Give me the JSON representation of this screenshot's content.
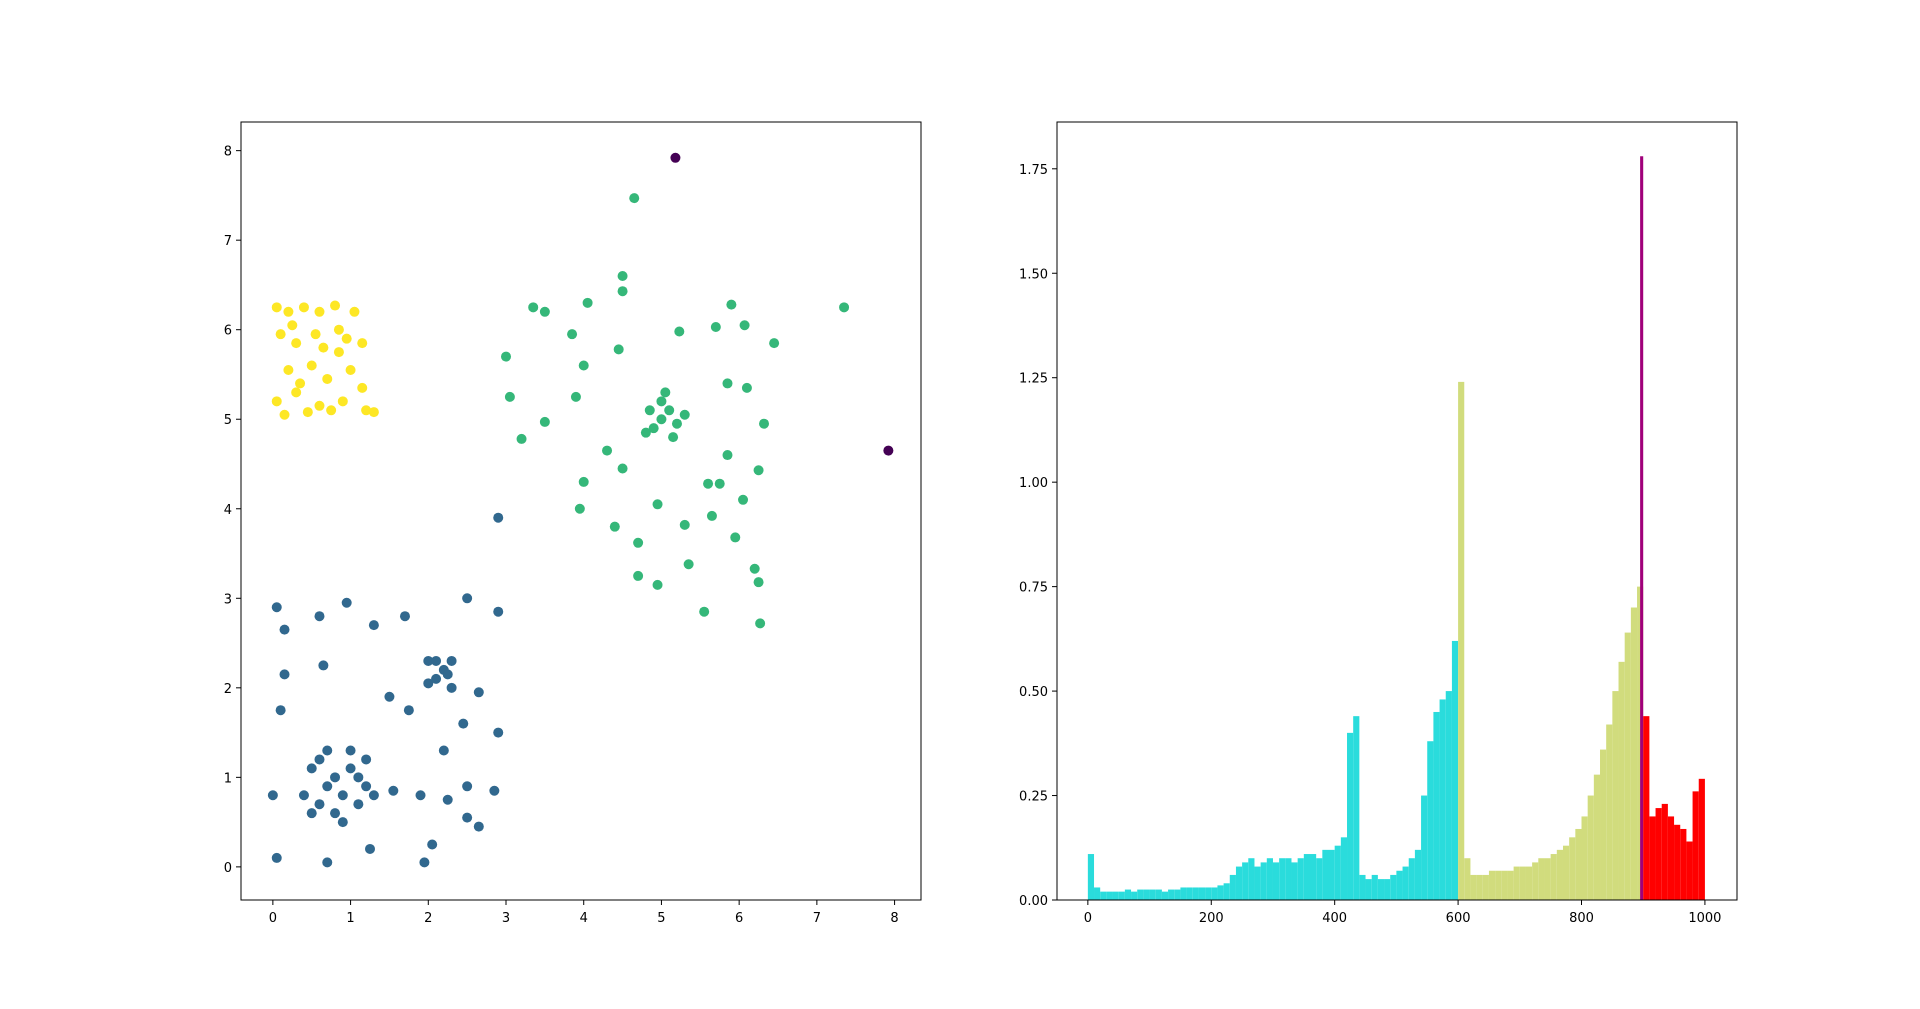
{
  "chart_data": [
    {
      "type": "scatter",
      "xlim": [
        -0.41,
        8.34
      ],
      "ylim": [
        -0.37,
        8.32
      ],
      "xticks": [
        0,
        1,
        2,
        3,
        4,
        5,
        6,
        7,
        8
      ],
      "yticks": [
        0,
        1,
        2,
        3,
        4,
        5,
        6,
        7,
        8
      ],
      "series": [
        {
          "color": "#31688e",
          "x": [
            0.6,
            0.7,
            0.8,
            0.9,
            1.0,
            1.1,
            0.5,
            0.6,
            0.7,
            1.2,
            1.2,
            0.4,
            0.9,
            1.0,
            0.8,
            1.1,
            0.5,
            1.3,
            2.0,
            2.1,
            2.2,
            2.3,
            2.1,
            2.3,
            2.0,
            2.25,
            0.05,
            0.15,
            0.6,
            0.95,
            1.3,
            1.7,
            2.5,
            2.9,
            0.15,
            0.1,
            0.65,
            1.5,
            1.75,
            2.65,
            2.9,
            2.45,
            1.55,
            1.9,
            2.2,
            2.5,
            2.85,
            0.0,
            0.05,
            0.7,
            1.25,
            1.95,
            2.05,
            2.65,
            2.5,
            2.9,
            2.25
          ],
          "y": [
            1.2,
            0.9,
            1.0,
            0.8,
            1.1,
            0.7,
            0.6,
            0.7,
            1.3,
            1.2,
            0.9,
            0.8,
            0.5,
            1.3,
            0.6,
            1.0,
            1.1,
            0.8,
            2.3,
            2.1,
            2.2,
            2.0,
            2.3,
            2.3,
            2.05,
            2.15,
            2.9,
            2.65,
            2.8,
            2.95,
            2.7,
            2.8,
            3.0,
            2.85,
            2.15,
            1.75,
            2.25,
            1.9,
            1.75,
            1.95,
            1.5,
            1.6,
            0.85,
            0.8,
            1.3,
            0.9,
            0.85,
            0.8,
            0.1,
            0.05,
            0.2,
            0.05,
            0.25,
            0.45,
            0.55,
            3.9,
            0.75
          ]
        },
        {
          "color": "#35b779",
          "x": [
            5.0,
            5.1,
            4.9,
            5.2,
            5.0,
            4.85,
            5.15,
            5.3,
            4.8,
            5.05,
            4.65,
            4.5,
            4.5,
            4.05,
            3.35,
            3.5,
            5.9,
            6.07,
            5.7,
            5.23,
            3.0,
            3.85,
            4.0,
            4.45,
            6.45,
            7.35,
            3.05,
            3.2,
            3.5,
            3.9,
            4.3,
            4.0,
            3.95,
            4.4,
            4.7,
            4.7,
            4.95,
            5.55,
            6.27,
            6.25,
            6.2,
            5.95,
            5.35,
            5.3,
            6.05,
            5.6,
            6.25,
            6.32,
            6.1,
            5.85,
            5.85,
            4.95,
            4.5,
            5.75,
            5.65
          ],
          "y": [
            5.0,
            5.1,
            4.9,
            4.95,
            5.2,
            5.1,
            4.8,
            5.05,
            4.85,
            5.3,
            7.47,
            6.6,
            6.43,
            6.3,
            6.25,
            6.2,
            6.28,
            6.05,
            6.03,
            5.98,
            5.7,
            5.95,
            5.6,
            5.78,
            5.85,
            6.25,
            5.25,
            4.78,
            4.97,
            5.25,
            4.65,
            4.3,
            4.0,
            3.8,
            3.62,
            3.25,
            3.15,
            2.85,
            2.72,
            3.18,
            3.33,
            3.68,
            3.38,
            3.82,
            4.1,
            4.28,
            4.43,
            4.95,
            5.35,
            4.6,
            5.4,
            4.05,
            4.45,
            4.28,
            3.92
          ]
        },
        {
          "color": "#fde725",
          "x": [
            0.05,
            0.2,
            0.4,
            0.6,
            0.8,
            1.05,
            0.1,
            0.3,
            0.55,
            0.85,
            1.15,
            0.2,
            0.5,
            0.85,
            1.0,
            1.15,
            0.05,
            0.3,
            0.6,
            0.9,
            1.2,
            0.15,
            0.45,
            0.75,
            1.3,
            0.35,
            0.7,
            0.95,
            0.25,
            0.65
          ],
          "y": [
            6.25,
            6.2,
            6.25,
            6.2,
            6.27,
            6.2,
            5.95,
            5.85,
            5.95,
            6.0,
            5.85,
            5.55,
            5.6,
            5.75,
            5.55,
            5.35,
            5.2,
            5.3,
            5.15,
            5.2,
            5.1,
            5.05,
            5.08,
            5.1,
            5.08,
            5.4,
            5.45,
            5.9,
            6.05,
            5.8
          ]
        },
        {
          "color": "#440154",
          "x": [
            5.18,
            7.92
          ],
          "y": [
            7.92,
            4.65
          ]
        }
      ]
    },
    {
      "type": "bar",
      "xlim": [
        -50,
        1052
      ],
      "ylim": [
        0,
        1.862
      ],
      "xticks": [
        0,
        200,
        400,
        600,
        800,
        1000
      ],
      "yticks": [
        {
          "value": 0,
          "label": "0.00"
        },
        {
          "value": 0.25,
          "label": "0.25"
        },
        {
          "value": 0.5,
          "label": "0.50"
        },
        {
          "value": 0.75,
          "label": "0.75"
        },
        {
          "value": 1,
          "label": "1.00"
        },
        {
          "value": 1.25,
          "label": "1.25"
        },
        {
          "value": 1.5,
          "label": "1.50"
        },
        {
          "value": 1.75,
          "label": "1.75"
        }
      ],
      "series": [
        {
          "color": "#2adcdc",
          "x": [
            0,
            10,
            20,
            30,
            40,
            50,
            60,
            70,
            80,
            90,
            100,
            110,
            120,
            130,
            140,
            150,
            160,
            170,
            180,
            190,
            200,
            210,
            220,
            230,
            240,
            250,
            260,
            270,
            280,
            290,
            300,
            310,
            320,
            330,
            340,
            350,
            360,
            370,
            380,
            390,
            400,
            410,
            420,
            430,
            440,
            450,
            460,
            470,
            480,
            490,
            500,
            510,
            520,
            530,
            540,
            550,
            560,
            570,
            580,
            590
          ],
          "values": [
            0.11,
            0.03,
            0.02,
            0.02,
            0.02,
            0.02,
            0.025,
            0.02,
            0.025,
            0.025,
            0.025,
            0.025,
            0.02,
            0.025,
            0.025,
            0.03,
            0.03,
            0.03,
            0.03,
            0.03,
            0.03,
            0.035,
            0.04,
            0.06,
            0.08,
            0.09,
            0.1,
            0.08,
            0.09,
            0.1,
            0.09,
            0.1,
            0.1,
            0.09,
            0.1,
            0.11,
            0.11,
            0.1,
            0.12,
            0.12,
            0.13,
            0.15,
            0.4,
            0.44,
            0.06,
            0.05,
            0.06,
            0.05,
            0.05,
            0.06,
            0.07,
            0.08,
            0.1,
            0.12,
            0.25,
            0.38,
            0.45,
            0.48,
            0.5,
            0.62
          ]
        },
        {
          "color": "#d1dc7d",
          "x": [
            600,
            610,
            620,
            630,
            640,
            650,
            660,
            670,
            680,
            690,
            700,
            710,
            720,
            730,
            740,
            750,
            760,
            770,
            780,
            790,
            800,
            810,
            820,
            830,
            840,
            850,
            860,
            870,
            880,
            890
          ],
          "values": [
            1.24,
            0.1,
            0.06,
            0.06,
            0.06,
            0.07,
            0.07,
            0.07,
            0.07,
            0.08,
            0.08,
            0.08,
            0.09,
            0.1,
            0.1,
            0.11,
            0.12,
            0.13,
            0.15,
            0.17,
            0.2,
            0.25,
            0.3,
            0.36,
            0.42,
            0.5,
            0.57,
            0.64,
            0.7,
            0.75
          ]
        },
        {
          "color": "#a0007a",
          "x": [
            895
          ],
          "values": [
            1.78
          ]
        },
        {
          "color": "#ff0000",
          "x": [
            900,
            910,
            920,
            930,
            940,
            950,
            960,
            970,
            980,
            990
          ],
          "values": [
            0.44,
            0.2,
            0.22,
            0.23,
            0.2,
            0.18,
            0.17,
            0.14,
            0.26,
            0.29
          ]
        }
      ]
    }
  ]
}
